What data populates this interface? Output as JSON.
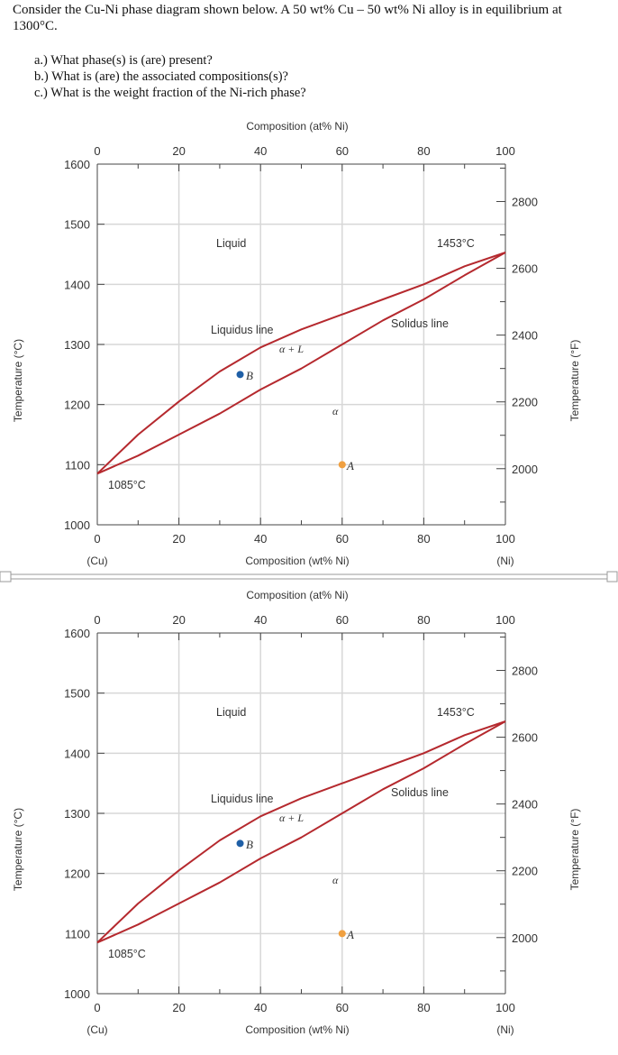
{
  "question": {
    "text": "Consider the Cu-Ni phase diagram shown below.  A 50 wt% Cu – 50 wt% Ni alloy is in equilibrium at 1300°C.",
    "parts": [
      "a.) What phase(s) is (are) present?",
      "b.) What is (are) the associated compositions(s)?",
      "c.) What is the weight fraction of the Ni-rich phase?"
    ]
  },
  "colors": {
    "curve": "#b5292e",
    "point_A": "#f0a040",
    "point_B": "#1f5fa6",
    "grid": "#d7d7d7"
  },
  "diagrams": [
    {
      "top_axis_label": "Composition (at% Ni)",
      "bottom_axis_label": "Composition (wt% Ni)",
      "left_axis_label": "Temperature (°C)",
      "right_axis_label": "Temperature (°F)",
      "left_end_label": "(Cu)",
      "right_end_label": "(Ni)",
      "liquid_label": "Liquid",
      "melting_ni_label": "1453°C",
      "melting_cu_label": "1085°C",
      "liquidus_label": "Liquidus line",
      "solidus_label": "Solidus line",
      "two_phase_label": "α + L",
      "alpha_label": "α",
      "point_a_label": "A",
      "point_b_label": "B"
    },
    {
      "top_axis_label": "Composition (at% Ni)",
      "bottom_axis_label": "Composition (wt% Ni)",
      "left_axis_label": "Temperature (°C)",
      "right_axis_label": "Temperature (°F)",
      "left_end_label": "(Cu)",
      "right_end_label": "(Ni)",
      "liquid_label": "Liquid",
      "melting_ni_label": "1453°C",
      "melting_cu_label": "1085°C",
      "liquidus_label": "Liquidus line",
      "solidus_label": "Solidus line",
      "two_phase_label": "α + L",
      "alpha_label": "α",
      "point_a_label": "A",
      "point_b_label": "B"
    }
  ],
  "chart_data": [
    {
      "type": "line",
      "title": "",
      "xlabel": "Composition (wt% Ni)",
      "x2label": "Composition (at% Ni)",
      "ylabel": "Temperature (°C)",
      "y2label": "Temperature (°F)",
      "xlim": [
        0,
        100
      ],
      "ylim": [
        1000,
        1600
      ],
      "y2lim": [
        1832,
        2912
      ],
      "x_ticks": [
        0,
        20,
        40,
        60,
        80,
        100
      ],
      "x2_ticks": [
        0,
        20,
        40,
        60,
        80,
        100
      ],
      "y_ticks": [
        1000,
        1100,
        1200,
        1300,
        1400,
        1500,
        1600
      ],
      "y2_ticks": [
        2000,
        2200,
        2400,
        2600,
        2800
      ],
      "grid": true,
      "series": [
        {
          "name": "Liquidus line",
          "x": [
            0,
            10,
            20,
            30,
            40,
            50,
            60,
            70,
            80,
            90,
            100
          ],
          "y": [
            1085,
            1150,
            1205,
            1255,
            1295,
            1325,
            1350,
            1375,
            1400,
            1430,
            1453
          ]
        },
        {
          "name": "Solidus line",
          "x": [
            0,
            10,
            20,
            30,
            40,
            50,
            60,
            70,
            80,
            90,
            100
          ],
          "y": [
            1085,
            1115,
            1150,
            1185,
            1225,
            1260,
            1300,
            1340,
            1375,
            1415,
            1453
          ]
        }
      ],
      "points": [
        {
          "label": "A",
          "x": 60,
          "y": 1100
        },
        {
          "label": "B",
          "x": 35,
          "y": 1250
        }
      ],
      "annotations": [
        "Liquid",
        "1453°C",
        "1085°C",
        "Liquidus line",
        "Solidus line",
        "α + L",
        "α",
        "(Cu)",
        "(Ni)"
      ]
    },
    {
      "type": "line",
      "title": "",
      "xlabel": "Composition (wt% Ni)",
      "x2label": "Composition (at% Ni)",
      "ylabel": "Temperature (°C)",
      "y2label": "Temperature (°F)",
      "xlim": [
        0,
        100
      ],
      "ylim": [
        1000,
        1600
      ],
      "y2lim": [
        1832,
        2912
      ],
      "x_ticks": [
        0,
        20,
        40,
        60,
        80,
        100
      ],
      "x2_ticks": [
        0,
        20,
        40,
        60,
        80,
        100
      ],
      "y_ticks": [
        1000,
        1100,
        1200,
        1300,
        1400,
        1500,
        1600
      ],
      "y2_ticks": [
        2000,
        2200,
        2400,
        2600,
        2800
      ],
      "grid": true,
      "series": [
        {
          "name": "Liquidus line",
          "x": [
            0,
            10,
            20,
            30,
            40,
            50,
            60,
            70,
            80,
            90,
            100
          ],
          "y": [
            1085,
            1150,
            1205,
            1255,
            1295,
            1325,
            1350,
            1375,
            1400,
            1430,
            1453
          ]
        },
        {
          "name": "Solidus line",
          "x": [
            0,
            10,
            20,
            30,
            40,
            50,
            60,
            70,
            80,
            90,
            100
          ],
          "y": [
            1085,
            1115,
            1150,
            1185,
            1225,
            1260,
            1300,
            1340,
            1375,
            1415,
            1453
          ]
        }
      ],
      "points": [
        {
          "label": "A",
          "x": 60,
          "y": 1100
        },
        {
          "label": "B",
          "x": 35,
          "y": 1250
        }
      ],
      "annotations": [
        "Liquid",
        "1453°C",
        "1085°C",
        "Liquidus line",
        "Solidus line",
        "α + L",
        "α",
        "(Cu)",
        "(Ni)"
      ]
    }
  ]
}
